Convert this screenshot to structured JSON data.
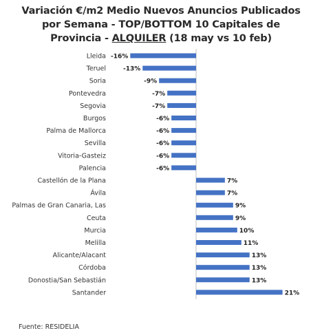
{
  "title": {
    "line1": "Variación €/m2 Medio Nuevos Anuncios Publicados",
    "line2": "por Semana - TOP/BOTTOM 10 Capitales de",
    "line3_pre": "Provincia - ",
    "line3_u": "ALQUILER",
    "line3_post": " (18 may vs 10 feb)"
  },
  "source": "Fuente: RESIDELIA",
  "colors": {
    "bar": "#4472C4",
    "axis": "#bfbfbf"
  },
  "chart_data": {
    "type": "bar",
    "orientation": "horizontal",
    "title": "Variación €/m2 Medio Nuevos Anuncios Publicados por Semana - TOP/BOTTOM 10 Capitales de Provincia - ALQUILER (18 may vs 10 feb)",
    "categories": [
      "Lleida",
      "Teruel",
      "Soria",
      "Pontevedra",
      "Segovia",
      "Burgos",
      "Palma de Mallorca",
      "Sevilla",
      "Vitoria-Gasteiz",
      "Palencia",
      "Castellón de la Plana",
      "Ávila",
      "Palmas de Gran Canaria, Las",
      "Ceuta",
      "Murcia",
      "Melilla",
      "Alicante/Alacant",
      "Córdoba",
      "Donostia/San Sebastián",
      "Santander"
    ],
    "values": [
      -16,
      -13,
      -9,
      -7,
      -7,
      -6,
      -6,
      -6,
      -6,
      -6,
      7,
      7,
      9,
      9,
      10,
      11,
      13,
      13,
      13,
      21
    ],
    "labels": [
      "-16%",
      "-13%",
      "-9%",
      "-7%",
      "-7%",
      "-6%",
      "-6%",
      "-6%",
      "-6%",
      "-6%",
      "7%",
      "7%",
      "9%",
      "9%",
      "10%",
      "11%",
      "13%",
      "13%",
      "13%",
      "21%"
    ],
    "xlim": [
      -16,
      21
    ],
    "grid": false,
    "legend": "none"
  }
}
